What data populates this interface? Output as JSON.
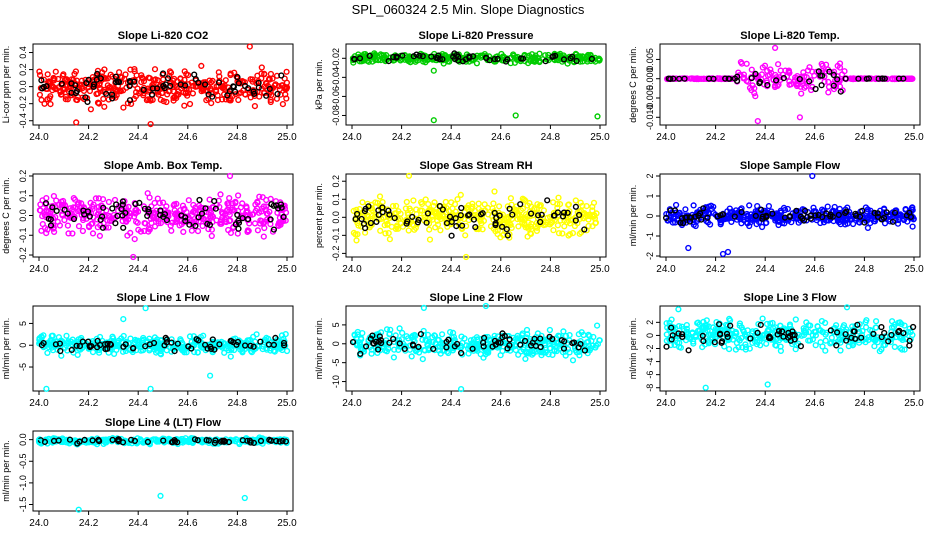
{
  "figure_title": "SPL_060324  2.5 Min. Slope Diagnostics",
  "chart_data": [
    {
      "type": "scatter",
      "title": "Slope Li-820 CO2",
      "ylabel": "Li-cor ppm per min.",
      "xlim": [
        24.0,
        25.0
      ],
      "xticks": [
        "24.0",
        "24.2",
        "24.4",
        "24.6",
        "24.8",
        "25.0"
      ],
      "ylim": [
        -0.45,
        0.5
      ],
      "yticks": [
        "-0.4",
        "-0.2",
        "0.0",
        "0.2",
        "0.4"
      ],
      "color": "#ff0000",
      "spread": 0.16,
      "n": 420,
      "outliers": [
        [
          24.15,
          -0.42
        ],
        [
          24.85,
          0.47
        ],
        [
          24.45,
          -0.44
        ]
      ]
    },
    {
      "type": "scatter",
      "title": "Slope Li-820 Pressure",
      "ylabel": "kPa per min.",
      "xlim": [
        24.0,
        25.0
      ],
      "xticks": [
        "24.0",
        "24.2",
        "24.4",
        "24.6",
        "24.8",
        "25.0"
      ],
      "ylim": [
        -0.09,
        -0.005
      ],
      "yticks": [
        "-0.08",
        "-0.06",
        "-0.04",
        "-0.02"
      ],
      "color": "#00cc00",
      "spread": 0.004,
      "center": -0.02,
      "n": 300,
      "outliers": [
        [
          24.33,
          -0.085
        ],
        [
          24.66,
          -0.08
        ],
        [
          24.99,
          -0.081
        ],
        [
          24.33,
          -0.033
        ]
      ]
    },
    {
      "type": "scatter",
      "title": "Slope Li-820 Temp.",
      "ylabel": "degrees C per min.",
      "xlim": [
        24.0,
        25.0
      ],
      "xticks": [
        "24.0",
        "24.2",
        "24.4",
        "24.6",
        "24.8",
        "25.0"
      ],
      "ylim": [
        -0.012,
        0.009
      ],
      "yticks": [
        "-0.010",
        "-0.005",
        "0.000",
        "0.005"
      ],
      "color": "#ff00ff",
      "spread": 0.003,
      "n": 260,
      "active": [
        24.28,
        24.72
      ],
      "outliers": [
        [
          24.44,
          0.008
        ],
        [
          24.37,
          -0.011
        ],
        [
          24.54,
          -0.01
        ]
      ]
    },
    {
      "type": "scatter",
      "title": "Slope Amb. Box Temp.",
      "ylabel": "degrees C per min.",
      "xlim": [
        24.0,
        25.0
      ],
      "xticks": [
        "24.0",
        "24.2",
        "24.4",
        "24.6",
        "24.8",
        "25.0"
      ],
      "ylim": [
        -0.21,
        0.21
      ],
      "yticks": [
        "-0.2",
        "-0.1",
        "0.0",
        "0.1",
        "0.2"
      ],
      "color": "#ff00ff",
      "spread": 0.07,
      "n": 420,
      "outliers": [
        [
          24.38,
          -0.21
        ],
        [
          24.77,
          0.2
        ]
      ]
    },
    {
      "type": "scatter",
      "title": "Slope Gas Stream RH",
      "ylabel": "percent per min.",
      "xlim": [
        24.0,
        25.0
      ],
      "xticks": [
        "24.0",
        "24.2",
        "24.4",
        "24.6",
        "24.8",
        "25.0"
      ],
      "ylim": [
        -0.22,
        0.24
      ],
      "yticks": [
        "-0.2",
        "-0.1",
        "0.0",
        "0.1",
        "0.2"
      ],
      "color": "#ffff00",
      "spread": 0.08,
      "n": 420,
      "outliers": [
        [
          24.46,
          -0.22
        ],
        [
          24.23,
          0.23
        ]
      ]
    },
    {
      "type": "scatter",
      "title": "Slope Sample Flow",
      "ylabel": "ml/min per min.",
      "xlim": [
        24.0,
        25.0
      ],
      "xticks": [
        "24.0",
        "24.2",
        "24.4",
        "24.6",
        "24.8",
        "25.0"
      ],
      "ylim": [
        -2.05,
        2.1
      ],
      "yticks": [
        "-2",
        "-1",
        "0",
        "1",
        "2"
      ],
      "color": "#0000ff",
      "spread": 0.35,
      "n": 420,
      "outliers": [
        [
          24.59,
          2.0
        ],
        [
          24.23,
          -1.9
        ],
        [
          24.09,
          -1.6
        ],
        [
          24.25,
          -1.8
        ]
      ]
    },
    {
      "type": "scatter",
      "title": "Slope Line 1 Flow",
      "ylabel": "ml/min per min.",
      "xlim": [
        24.0,
        25.0
      ],
      "xticks": [
        "24.0",
        "24.2",
        "24.4",
        "24.6",
        "24.8",
        "25.0"
      ],
      "ylim": [
        -10.5,
        9
      ],
      "yticks": [
        "-5",
        "0",
        "5"
      ],
      "color": "#00ffff",
      "spread": 1.6,
      "n": 380,
      "outliers": [
        [
          24.03,
          -10
        ],
        [
          24.43,
          8.5
        ],
        [
          24.45,
          -10
        ],
        [
          24.34,
          6.0
        ],
        [
          24.69,
          -7.0
        ]
      ]
    },
    {
      "type": "scatter",
      "title": "Slope Line 2 Flow",
      "ylabel": "ml/min per min.",
      "xlim": [
        24.0,
        25.0
      ],
      "xticks": [
        "24.0",
        "24.2",
        "24.4",
        "24.6",
        "24.8",
        "25.0"
      ],
      "ylim": [
        -12.5,
        10
      ],
      "yticks": [
        "-10",
        "-5",
        "0",
        "5"
      ],
      "color": "#00ffff",
      "spread": 2.6,
      "n": 380,
      "outliers": [
        [
          24.44,
          -12
        ],
        [
          24.54,
          10
        ],
        [
          24.29,
          9.5
        ]
      ]
    },
    {
      "type": "scatter",
      "title": "Slope Line 3 Flow",
      "ylabel": "ml/min per min.",
      "xlim": [
        24.0,
        25.0
      ],
      "xticks": [
        "24.0",
        "24.2",
        "24.4",
        "24.6",
        "24.8",
        "25.0"
      ],
      "ylim": [
        -8.5,
        4.5
      ],
      "yticks": [
        "-8",
        "-6",
        "-4",
        "-2",
        "0",
        "2"
      ],
      "color": "#00ffff",
      "spread": 1.7,
      "n": 380,
      "outliers": [
        [
          24.16,
          -8
        ],
        [
          24.41,
          -7.5
        ],
        [
          24.73,
          4.3
        ],
        [
          24.05,
          4.0
        ]
      ]
    },
    {
      "type": "scatter",
      "title": "Slope Line 4 (LT) Flow",
      "ylabel": "ml/min per min.",
      "xlim": [
        24.0,
        25.0
      ],
      "xticks": [
        "24.0",
        "24.2",
        "24.4",
        "24.6",
        "24.8",
        "25.0"
      ],
      "ylim": [
        -1.65,
        0.2
      ],
      "yticks": [
        "-1.5",
        "-1.0",
        "-0.5",
        "0.0"
      ],
      "color": "#00ffff",
      "spread": 0.05,
      "center": -0.03,
      "n": 320,
      "outliers": [
        [
          24.16,
          -1.62
        ],
        [
          24.49,
          -1.3
        ],
        [
          24.83,
          -1.35
        ],
        [
          24.0,
          -0.05
        ]
      ]
    }
  ]
}
